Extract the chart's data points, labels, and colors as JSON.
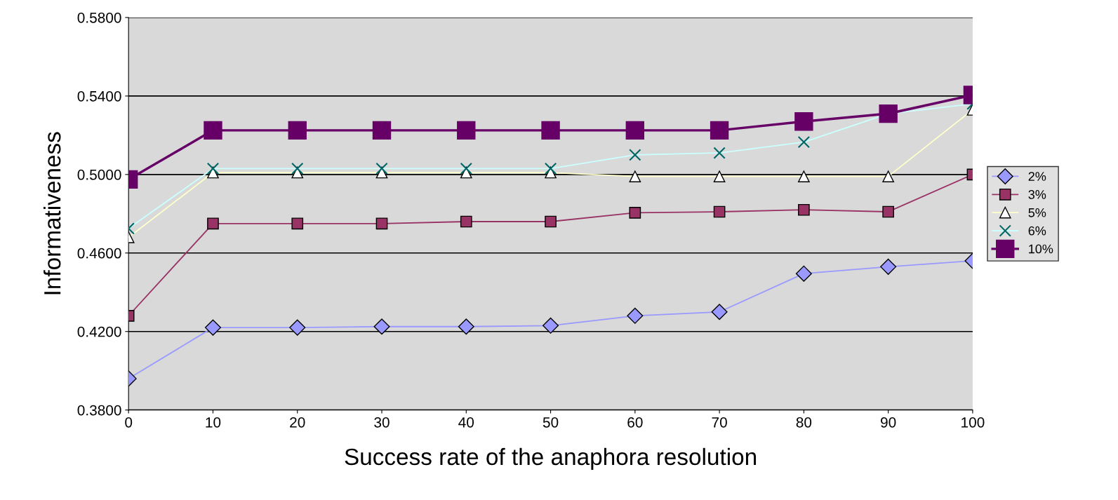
{
  "chart_data": {
    "type": "line",
    "xlabel": "Success rate of the anaphora resolution",
    "ylabel": "Informativeness",
    "x": [
      0,
      10,
      20,
      30,
      40,
      50,
      60,
      70,
      80,
      90,
      100
    ],
    "xlim": [
      0,
      100
    ],
    "xticks": [
      0,
      10,
      20,
      30,
      40,
      50,
      60,
      70,
      80,
      90,
      100
    ],
    "ylim": [
      0.38,
      0.58
    ],
    "yticks": [
      {
        "value": 0.38,
        "label": "0.3800"
      },
      {
        "value": 0.42,
        "label": "0.4200"
      },
      {
        "value": 0.46,
        "label": "0.4600"
      },
      {
        "value": 0.5,
        "label": "0.5000"
      },
      {
        "value": 0.54,
        "label": "0.5400"
      },
      {
        "value": 0.58,
        "label": "0.5800"
      }
    ],
    "grid": "y",
    "legend": "right",
    "series": [
      {
        "name": "2%",
        "color": "#9999ff",
        "marker": "diamond",
        "values": [
          0.396,
          0.422,
          0.422,
          0.4225,
          0.4225,
          0.423,
          0.428,
          0.43,
          0.4495,
          0.453,
          0.456
        ]
      },
      {
        "name": "3%",
        "color": "#993366",
        "marker": "square",
        "values": [
          0.428,
          0.475,
          0.475,
          0.475,
          0.476,
          0.476,
          0.4805,
          0.481,
          0.482,
          0.481,
          0.5
        ]
      },
      {
        "name": "5%",
        "color": "#ffffcc",
        "marker": "triangle",
        "values": [
          0.468,
          0.501,
          0.501,
          0.501,
          0.501,
          0.501,
          0.499,
          0.499,
          0.499,
          0.499,
          0.533
        ]
      },
      {
        "name": "6%",
        "color": "#ccffff",
        "marker": "cross",
        "values": [
          0.4725,
          0.503,
          0.503,
          0.503,
          0.503,
          0.503,
          0.51,
          0.511,
          0.5165,
          0.531,
          0.536
        ]
      },
      {
        "name": "10%",
        "color": "#660066",
        "marker": "square",
        "values": [
          0.4975,
          0.5225,
          0.5225,
          0.5225,
          0.5225,
          0.5225,
          0.5225,
          0.5225,
          0.527,
          0.531,
          0.5405
        ]
      }
    ]
  }
}
